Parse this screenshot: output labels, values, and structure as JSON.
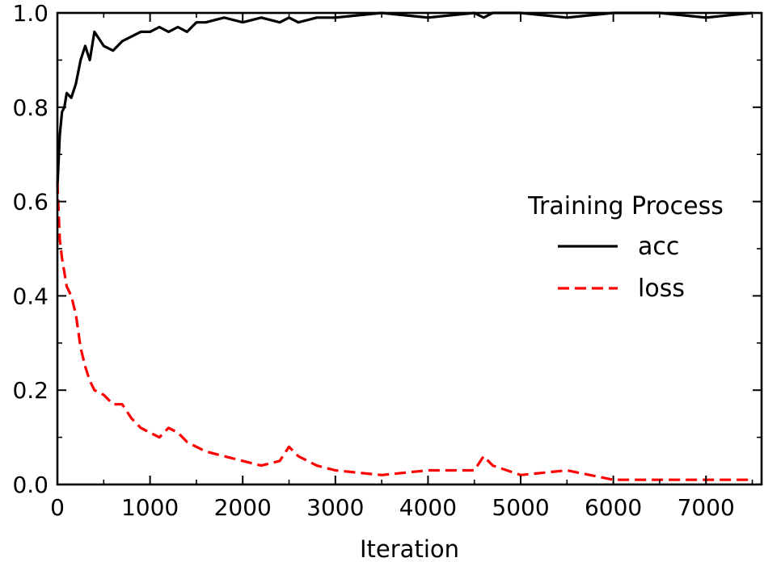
{
  "chart_data": {
    "type": "line",
    "title": "",
    "xlabel": "Iteration",
    "ylabel": "",
    "xlim": [
      0,
      7600
    ],
    "ylim": [
      0.0,
      1.0
    ],
    "x_ticks": [
      0,
      1000,
      2000,
      3000,
      4000,
      5000,
      6000,
      7000
    ],
    "x_tick_labels": [
      "0",
      "1000",
      "2000",
      "3000",
      "4000",
      "5000",
      "6000",
      "7000"
    ],
    "y_ticks": [
      0.0,
      0.2,
      0.4,
      0.6,
      0.8,
      1.0
    ],
    "y_tick_labels": [
      "0.0",
      "0.2",
      "0.4",
      "0.6",
      "0.8",
      "1.0"
    ],
    "grid": false,
    "legend": {
      "title": "Training Process",
      "placement": "right"
    },
    "series": [
      {
        "name": "acc",
        "color": "#000000",
        "dash": "solid",
        "x": [
          0,
          25,
          50,
          75,
          100,
          150,
          200,
          250,
          300,
          350,
          400,
          500,
          600,
          700,
          800,
          900,
          1000,
          1100,
          1200,
          1300,
          1400,
          1500,
          1600,
          1800,
          2000,
          2200,
          2400,
          2500,
          2600,
          2800,
          3000,
          3500,
          4000,
          4500,
          4600,
          4700,
          5000,
          5500,
          6000,
          6500,
          7000,
          7500
        ],
        "y": [
          0.63,
          0.74,
          0.79,
          0.8,
          0.83,
          0.82,
          0.85,
          0.9,
          0.93,
          0.9,
          0.96,
          0.93,
          0.92,
          0.94,
          0.95,
          0.96,
          0.96,
          0.97,
          0.96,
          0.97,
          0.96,
          0.98,
          0.98,
          0.99,
          0.98,
          0.99,
          0.98,
          0.99,
          0.98,
          0.99,
          0.99,
          1.0,
          0.99,
          1.0,
          0.99,
          1.0,
          1.0,
          0.99,
          1.0,
          1.0,
          0.99,
          1.0
        ]
      },
      {
        "name": "loss",
        "color": "#ff0000",
        "dash": "dashed",
        "x": [
          0,
          25,
          50,
          75,
          100,
          150,
          200,
          250,
          300,
          350,
          400,
          500,
          600,
          700,
          800,
          900,
          1000,
          1100,
          1200,
          1300,
          1400,
          1500,
          1600,
          1800,
          2000,
          2200,
          2400,
          2500,
          2600,
          2800,
          3000,
          3500,
          4000,
          4500,
          4600,
          4700,
          5000,
          5500,
          6000,
          6500,
          7000,
          7500
        ],
        "y": [
          0.64,
          0.52,
          0.48,
          0.45,
          0.42,
          0.4,
          0.36,
          0.29,
          0.25,
          0.22,
          0.2,
          0.19,
          0.17,
          0.17,
          0.14,
          0.12,
          0.11,
          0.1,
          0.12,
          0.11,
          0.09,
          0.08,
          0.07,
          0.06,
          0.05,
          0.04,
          0.05,
          0.08,
          0.06,
          0.04,
          0.03,
          0.02,
          0.03,
          0.03,
          0.06,
          0.04,
          0.02,
          0.03,
          0.01,
          0.01,
          0.01,
          0.01
        ]
      }
    ]
  }
}
